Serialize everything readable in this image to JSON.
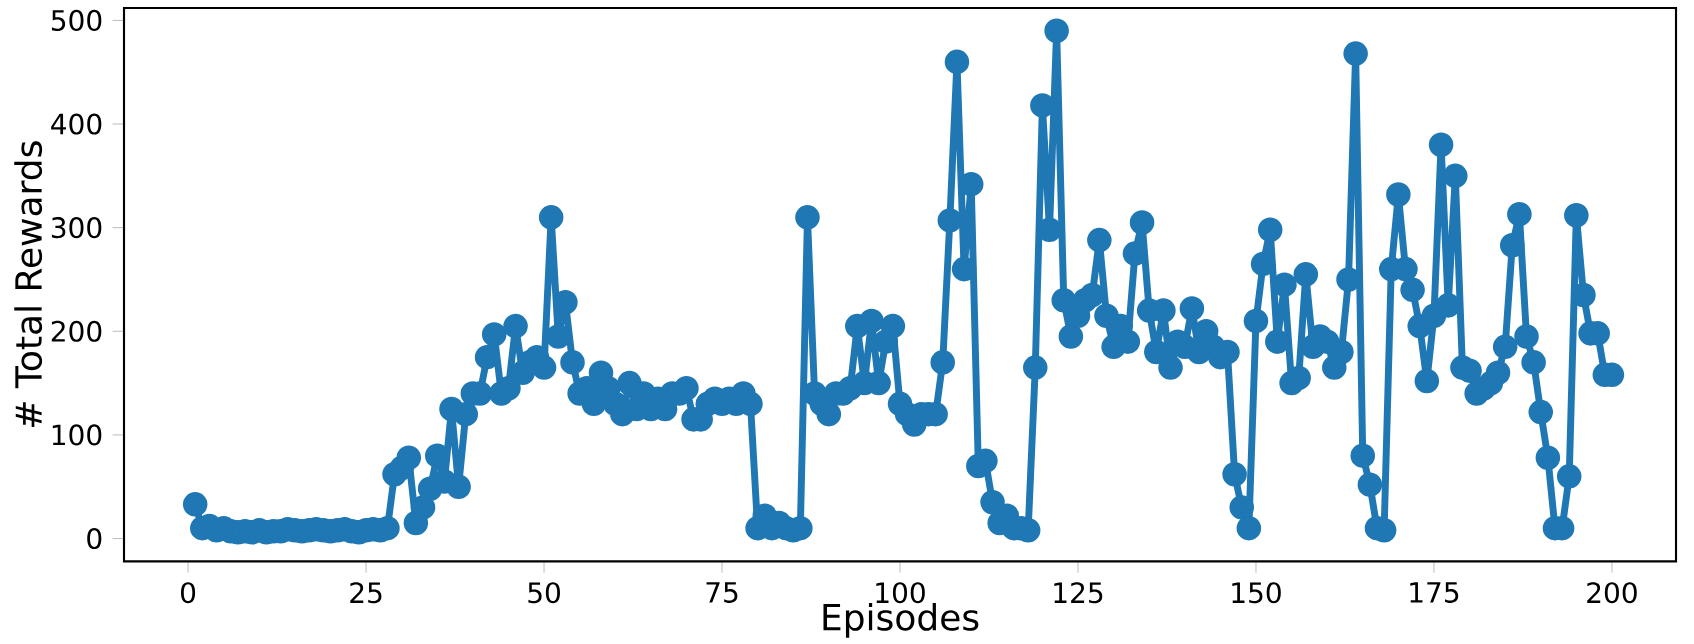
{
  "chart_data": {
    "type": "line",
    "xlabel": "Episodes",
    "ylabel": "# Total Rewards",
    "color": "#1f77b4",
    "marker": "circle",
    "line_style": "solid",
    "grid": false,
    "x": [
      1,
      2,
      3,
      4,
      5,
      6,
      7,
      8,
      9,
      10,
      11,
      12,
      13,
      14,
      15,
      16,
      17,
      18,
      19,
      20,
      21,
      22,
      23,
      24,
      25,
      26,
      27,
      28,
      29,
      30,
      31,
      32,
      33,
      34,
      35,
      36,
      37,
      38,
      39,
      40,
      41,
      42,
      43,
      44,
      45,
      46,
      47,
      48,
      49,
      50,
      51,
      52,
      53,
      54,
      55,
      56,
      57,
      58,
      59,
      60,
      61,
      62,
      63,
      64,
      65,
      66,
      67,
      68,
      69,
      70,
      71,
      72,
      73,
      74,
      75,
      76,
      77,
      78,
      79,
      80,
      81,
      82,
      83,
      84,
      85,
      86,
      87,
      88,
      89,
      90,
      91,
      92,
      93,
      94,
      95,
      96,
      97,
      98,
      99,
      100,
      101,
      102,
      103,
      104,
      105,
      106,
      107,
      108,
      109,
      110,
      111,
      112,
      113,
      114,
      115,
      116,
      117,
      118,
      119,
      120,
      121,
      122,
      123,
      124,
      125,
      126,
      127,
      128,
      129,
      130,
      131,
      132,
      133,
      134,
      135,
      136,
      137,
      138,
      139,
      140,
      141,
      142,
      143,
      144,
      145,
      146,
      147,
      148,
      149,
      150,
      151,
      152,
      153,
      154,
      155,
      156,
      157,
      158,
      159,
      160,
      161,
      162,
      163,
      164,
      165,
      166,
      167,
      168,
      169,
      170,
      171,
      172,
      173,
      174,
      175,
      176,
      177,
      178,
      179,
      180,
      181,
      182,
      183,
      184,
      185,
      186,
      187,
      188,
      189,
      190,
      191,
      192,
      193,
      194,
      195,
      196,
      197,
      198,
      199,
      200
    ],
    "values": [
      33,
      10,
      12,
      8,
      10,
      7,
      6,
      7,
      6,
      8,
      6,
      7,
      7,
      9,
      8,
      7,
      8,
      9,
      8,
      7,
      8,
      9,
      7,
      6,
      8,
      9,
      8,
      10,
      62,
      68,
      78,
      15,
      30,
      48,
      80,
      55,
      125,
      50,
      120,
      140,
      140,
      175,
      197,
      140,
      145,
      205,
      160,
      170,
      175,
      165,
      310,
      195,
      228,
      170,
      140,
      145,
      130,
      160,
      145,
      130,
      120,
      150,
      125,
      140,
      125,
      135,
      125,
      140,
      140,
      145,
      115,
      115,
      130,
      135,
      130,
      135,
      130,
      140,
      130,
      10,
      22,
      10,
      15,
      10,
      8,
      10,
      310,
      140,
      130,
      120,
      140,
      140,
      145,
      205,
      150,
      210,
      150,
      190,
      205,
      130,
      120,
      110,
      120,
      120,
      120,
      170,
      307,
      460,
      260,
      342,
      70,
      75,
      35,
      15,
      22,
      10,
      10,
      8,
      165,
      418,
      298,
      490,
      230,
      195,
      215,
      230,
      235,
      288,
      215,
      185,
      205,
      190,
      275,
      305,
      220,
      180,
      220,
      165,
      190,
      185,
      222,
      180,
      200,
      185,
      175,
      180,
      62,
      30,
      10,
      210,
      265,
      298,
      190,
      245,
      150,
      155,
      255,
      185,
      195,
      190,
      165,
      180,
      250,
      468,
      80,
      52,
      10,
      8,
      260,
      332,
      260,
      240,
      205,
      152,
      215,
      380,
      225,
      350,
      165,
      162,
      140,
      145,
      150,
      160,
      185,
      283,
      313,
      195,
      170,
      122,
      78,
      10,
      10,
      60,
      312,
      235,
      198,
      198,
      158,
      158
    ],
    "xlim": [
      -9,
      209
    ],
    "ylim": [
      -22,
      512
    ],
    "xticks": [
      0,
      25,
      50,
      75,
      100,
      125,
      150,
      175,
      200
    ],
    "yticks": [
      0,
      100,
      200,
      300,
      400,
      500
    ]
  }
}
